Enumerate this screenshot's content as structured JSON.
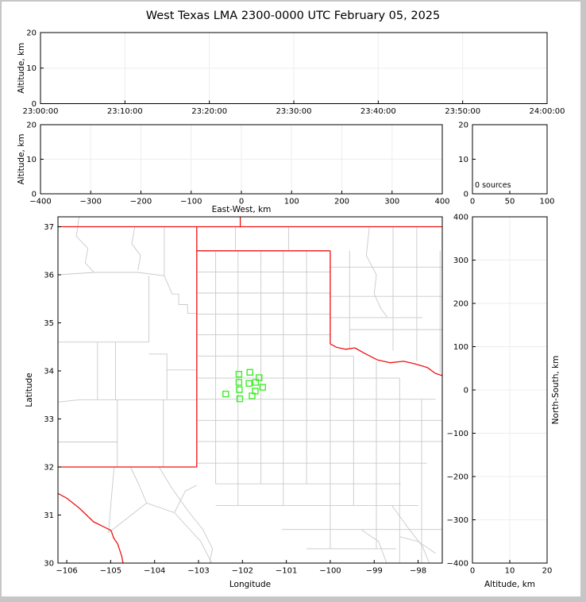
{
  "title": "West Texas LMA 2300-0000 UTC February 05, 2025",
  "colors": {
    "background": "#ffffff",
    "window_border": "#c6c6c6",
    "frame": "#000000",
    "grid": "#ededed",
    "county_line": "#c9c9c9",
    "state_border": "#f01111",
    "station_marker": "#3fee2a",
    "text": "#000000"
  },
  "chart_data": [
    {
      "id": "time_altitude",
      "type": "scatter",
      "xlim": [
        0,
        3600
      ],
      "ylim": [
        0,
        20
      ],
      "xtick_values": [
        0,
        600,
        1200,
        1800,
        2400,
        3000,
        3600
      ],
      "xtick_labels": [
        "23:00:00",
        "23:10:00",
        "23:20:00",
        "23:30:00",
        "23:40:00",
        "23:50:00",
        "24:00:00"
      ],
      "ytick_values": [
        0,
        10,
        20
      ],
      "ytick_labels": [
        "0",
        "10",
        "20"
      ],
      "xlabel": "",
      "ylabel": "Altitude, km",
      "grid": true,
      "points": []
    },
    {
      "id": "ew_altitude",
      "type": "scatter",
      "xlim": [
        -400,
        400
      ],
      "ylim": [
        0,
        20
      ],
      "xtick_values": [
        -400,
        -300,
        -200,
        -100,
        0,
        100,
        200,
        300,
        400
      ],
      "xtick_labels": [
        "−400",
        "−300",
        "−200",
        "−100",
        "0",
        "100",
        "200",
        "300",
        "400"
      ],
      "ytick_values": [
        0,
        10,
        20
      ],
      "ytick_labels": [
        "0",
        "10",
        "20"
      ],
      "xlabel": "East-West, km",
      "ylabel": "Altitude, km",
      "grid": true,
      "points": []
    },
    {
      "id": "source_histogram",
      "type": "line",
      "xlim": [
        0,
        100
      ],
      "ylim": [
        0,
        20
      ],
      "xtick_values": [
        0,
        50,
        100
      ],
      "xtick_labels": [
        "0",
        "50",
        "100"
      ],
      "ytick_values": [
        0,
        10,
        20
      ],
      "ytick_labels": [
        "0",
        "10",
        "20"
      ],
      "xlabel": "",
      "ylabel": "",
      "annotation": "0 sources",
      "grid": false,
      "points": []
    },
    {
      "id": "map",
      "type": "scatter",
      "xlim": [
        -106.2,
        -97.45
      ],
      "ylim": [
        30.0,
        37.207
      ],
      "xtick_values": [
        -106,
        -105,
        -104,
        -103,
        -102,
        -101,
        -100,
        -99,
        -98
      ],
      "xtick_labels": [
        "−106",
        "−105",
        "−104",
        "−103",
        "−102",
        "−101",
        "−100",
        "−99",
        "−98"
      ],
      "ytick_values": [
        37,
        36,
        35,
        34,
        33,
        32,
        31,
        30
      ],
      "ytick_labels": [
        "37",
        "36",
        "35",
        "34",
        "33",
        "32",
        "31",
        "30"
      ],
      "xlabel": "Longitude",
      "ylabel": "Latitude",
      "grid": false,
      "stations_lonlat": [
        [
          -102.08,
          33.93
        ],
        [
          -101.83,
          33.97
        ],
        [
          -101.62,
          33.86
        ],
        [
          -102.08,
          33.76
        ],
        [
          -101.85,
          33.74
        ],
        [
          -101.7,
          33.76
        ],
        [
          -101.54,
          33.66
        ],
        [
          -102.07,
          33.61
        ],
        [
          -102.38,
          33.52
        ],
        [
          -101.71,
          33.58
        ],
        [
          -101.78,
          33.48
        ],
        [
          -102.06,
          33.42
        ]
      ],
      "state_lines": [
        [
          [
            -106.2,
            37.0
          ],
          [
            -97.45,
            37.0
          ]
        ],
        [
          [
            -102.05,
            37.21
          ],
          [
            -102.05,
            37.0
          ]
        ],
        [
          [
            -103.04,
            37.0
          ],
          [
            -103.04,
            32.0
          ]
        ],
        [
          [
            -106.2,
            32.0
          ],
          [
            -103.04,
            32.0
          ]
        ],
        [
          [
            -103.04,
            36.5
          ],
          [
            -100.0,
            36.5
          ]
        ],
        [
          [
            -100.0,
            36.5
          ],
          [
            -100.0,
            34.56
          ]
        ],
        [
          [
            -100.0,
            34.56
          ],
          [
            -99.85,
            34.49
          ],
          [
            -99.65,
            34.45
          ],
          [
            -99.44,
            34.48
          ],
          [
            -99.23,
            34.37
          ],
          [
            -98.93,
            34.23
          ],
          [
            -98.63,
            34.17
          ],
          [
            -98.33,
            34.2
          ],
          [
            -98.09,
            34.15
          ],
          [
            -97.79,
            34.07
          ],
          [
            -97.61,
            33.95
          ],
          [
            -97.44,
            33.9
          ]
        ],
        [
          [
            -106.2,
            31.45
          ],
          [
            -106.0,
            31.35
          ],
          [
            -105.71,
            31.14
          ],
          [
            -105.39,
            30.86
          ],
          [
            -104.99,
            30.68
          ],
          [
            -104.93,
            30.52
          ],
          [
            -104.84,
            30.4
          ],
          [
            -104.75,
            30.15
          ],
          [
            -104.72,
            30.0
          ]
        ]
      ],
      "county_lines": [
        [
          [
            -102.61,
            36.5
          ],
          [
            -102.61,
            31.65
          ]
        ],
        [
          [
            -102.1,
            36.5
          ],
          [
            -102.1,
            31.2
          ]
        ],
        [
          [
            -101.58,
            36.5
          ],
          [
            -101.58,
            31.65
          ]
        ],
        [
          [
            -101.07,
            36.5
          ],
          [
            -101.07,
            31.2
          ]
        ],
        [
          [
            -100.54,
            36.5
          ],
          [
            -100.54,
            31.65
          ]
        ],
        [
          [
            -103.04,
            36.06
          ],
          [
            -100.0,
            36.06
          ]
        ],
        [
          [
            -103.04,
            35.62
          ],
          [
            -100.0,
            35.62
          ]
        ],
        [
          [
            -103.04,
            35.18
          ],
          [
            -100.0,
            35.18
          ]
        ],
        [
          [
            -103.04,
            34.75
          ],
          [
            -100.0,
            34.75
          ]
        ],
        [
          [
            -103.04,
            34.31
          ],
          [
            -99.47,
            34.31
          ]
        ],
        [
          [
            -103.04,
            33.85
          ],
          [
            -98.42,
            33.85
          ]
        ],
        [
          [
            -103.04,
            33.41
          ],
          [
            -97.6,
            33.41
          ]
        ],
        [
          [
            -103.04,
            32.97
          ],
          [
            -97.45,
            32.97
          ]
        ],
        [
          [
            -103.04,
            32.53
          ],
          [
            -97.45,
            32.53
          ]
        ],
        [
          [
            -103.04,
            32.08
          ],
          [
            -97.8,
            32.08
          ]
        ],
        [
          [
            -102.61,
            31.65
          ],
          [
            -98.4,
            31.65
          ]
        ],
        [
          [
            -102.61,
            31.2
          ],
          [
            -98.0,
            31.2
          ]
        ],
        [
          [
            -101.1,
            30.7
          ],
          [
            -97.45,
            30.7
          ]
        ],
        [
          [
            -100.54,
            30.3
          ],
          [
            -98.5,
            30.3
          ]
        ],
        [
          [
            -100.0,
            34.56
          ],
          [
            -100.0,
            30.3
          ]
        ],
        [
          [
            -99.47,
            34.31
          ],
          [
            -99.47,
            31.2
          ]
        ],
        [
          [
            -98.95,
            34.2
          ],
          [
            -98.95,
            30.3
          ]
        ],
        [
          [
            -98.42,
            33.85
          ],
          [
            -98.42,
            30.0
          ]
        ],
        [
          [
            -97.92,
            33.41
          ],
          [
            -97.92,
            30.0
          ]
        ],
        [
          [
            -102.16,
            37.0
          ],
          [
            -102.16,
            36.5
          ]
        ],
        [
          [
            -100.95,
            37.0
          ],
          [
            -100.95,
            36.5
          ]
        ],
        [
          [
            -99.56,
            36.5
          ],
          [
            -99.56,
            34.45
          ]
        ],
        [
          [
            -99.11,
            37.0
          ],
          [
            -99.18,
            36.4
          ],
          [
            -98.95,
            36.0
          ],
          [
            -99.0,
            35.6
          ],
          [
            -98.85,
            35.3
          ],
          [
            -98.7,
            35.11
          ]
        ],
        [
          [
            -98.57,
            37.0
          ],
          [
            -98.57,
            34.42
          ]
        ],
        [
          [
            -98.03,
            37.0
          ],
          [
            -98.03,
            34.2
          ]
        ],
        [
          [
            -97.5,
            36.5
          ],
          [
            -97.5,
            33.95
          ]
        ],
        [
          [
            -100.0,
            36.16
          ],
          [
            -97.45,
            36.16
          ]
        ],
        [
          [
            -100.0,
            35.55
          ],
          [
            -97.45,
            35.55
          ]
        ],
        [
          [
            -100.0,
            35.11
          ],
          [
            -97.9,
            35.11
          ]
        ],
        [
          [
            -99.56,
            34.86
          ],
          [
            -97.45,
            34.86
          ]
        ],
        [
          [
            -105.72,
            37.21
          ],
          [
            -105.78,
            36.8
          ],
          [
            -105.52,
            36.55
          ],
          [
            -105.58,
            36.25
          ],
          [
            -105.38,
            36.05
          ]
        ],
        [
          [
            -104.45,
            37.0
          ],
          [
            -104.52,
            36.65
          ],
          [
            -104.32,
            36.4
          ],
          [
            -104.38,
            36.1
          ]
        ],
        [
          [
            -106.2,
            36.0
          ],
          [
            -105.38,
            36.05
          ],
          [
            -104.38,
            36.05
          ],
          [
            -103.78,
            35.98
          ]
        ],
        [
          [
            -103.78,
            37.0
          ],
          [
            -103.78,
            35.98
          ]
        ],
        [
          [
            -103.78,
            35.98
          ],
          [
            -103.6,
            35.6
          ],
          [
            -103.45,
            35.6
          ],
          [
            -103.45,
            35.38
          ],
          [
            -103.25,
            35.38
          ],
          [
            -103.25,
            35.2
          ],
          [
            -103.04,
            35.2
          ]
        ],
        [
          [
            -104.13,
            35.98
          ],
          [
            -104.13,
            34.6
          ]
        ],
        [
          [
            -106.2,
            34.6
          ],
          [
            -104.13,
            34.6
          ]
        ],
        [
          [
            -105.3,
            34.6
          ],
          [
            -105.3,
            33.4
          ]
        ],
        [
          [
            -104.13,
            34.35
          ],
          [
            -103.72,
            34.35
          ],
          [
            -103.72,
            34.02
          ],
          [
            -103.04,
            34.02
          ]
        ],
        [
          [
            -104.89,
            34.6
          ],
          [
            -104.89,
            33.4
          ]
        ],
        [
          [
            -106.2,
            33.35
          ],
          [
            -105.7,
            33.4
          ],
          [
            -104.89,
            33.4
          ],
          [
            -103.04,
            33.4
          ]
        ],
        [
          [
            -103.72,
            34.02
          ],
          [
            -103.72,
            33.4
          ]
        ],
        [
          [
            -104.85,
            33.4
          ],
          [
            -104.85,
            32.0
          ]
        ],
        [
          [
            -103.8,
            33.4
          ],
          [
            -103.8,
            32.0
          ]
        ],
        [
          [
            -106.2,
            32.52
          ],
          [
            -104.85,
            32.52
          ]
        ],
        [
          [
            -104.55,
            32.0
          ],
          [
            -104.35,
            31.62
          ],
          [
            -104.18,
            31.25
          ]
        ],
        [
          [
            -105.05,
            30.63
          ],
          [
            -104.18,
            31.25
          ]
        ],
        [
          [
            -104.18,
            31.25
          ],
          [
            -103.55,
            31.05
          ],
          [
            -102.95,
            30.45
          ],
          [
            -102.7,
            30.0
          ]
        ],
        [
          [
            -103.55,
            31.05
          ],
          [
            -103.3,
            31.5
          ],
          [
            -103.04,
            31.62
          ]
        ],
        [
          [
            -103.9,
            32.0
          ],
          [
            -103.6,
            31.55
          ],
          [
            -103.25,
            31.1
          ],
          [
            -102.9,
            30.7
          ],
          [
            -102.68,
            30.3
          ],
          [
            -102.75,
            30.0
          ]
        ],
        [
          [
            -104.92,
            32.0
          ],
          [
            -104.98,
            31.4
          ],
          [
            -105.05,
            30.63
          ]
        ],
        [
          [
            -98.6,
            31.2
          ],
          [
            -98.2,
            30.7
          ],
          [
            -97.9,
            30.35
          ],
          [
            -97.75,
            30.0
          ]
        ],
        [
          [
            -98.42,
            30.55
          ],
          [
            -98.0,
            30.45
          ],
          [
            -97.6,
            30.2
          ]
        ],
        [
          [
            -99.3,
            30.7
          ],
          [
            -98.9,
            30.45
          ],
          [
            -98.72,
            30.0
          ]
        ]
      ]
    },
    {
      "id": "ns_altitude",
      "type": "scatter",
      "xlim": [
        0,
        20
      ],
      "ylim": [
        -400,
        400
      ],
      "xtick_values": [
        0,
        10,
        20
      ],
      "xtick_labels": [
        "0",
        "10",
        "20"
      ],
      "ytick_values": [
        400,
        300,
        200,
        100,
        0,
        -100,
        -200,
        -300,
        -400
      ],
      "ytick_labels": [
        "400",
        "300",
        "200",
        "100",
        "0",
        "−100",
        "−200",
        "−300",
        "−400"
      ],
      "xlabel": "Altitude, km",
      "ylabel_right": "North-South, km",
      "grid": true,
      "points": []
    }
  ]
}
